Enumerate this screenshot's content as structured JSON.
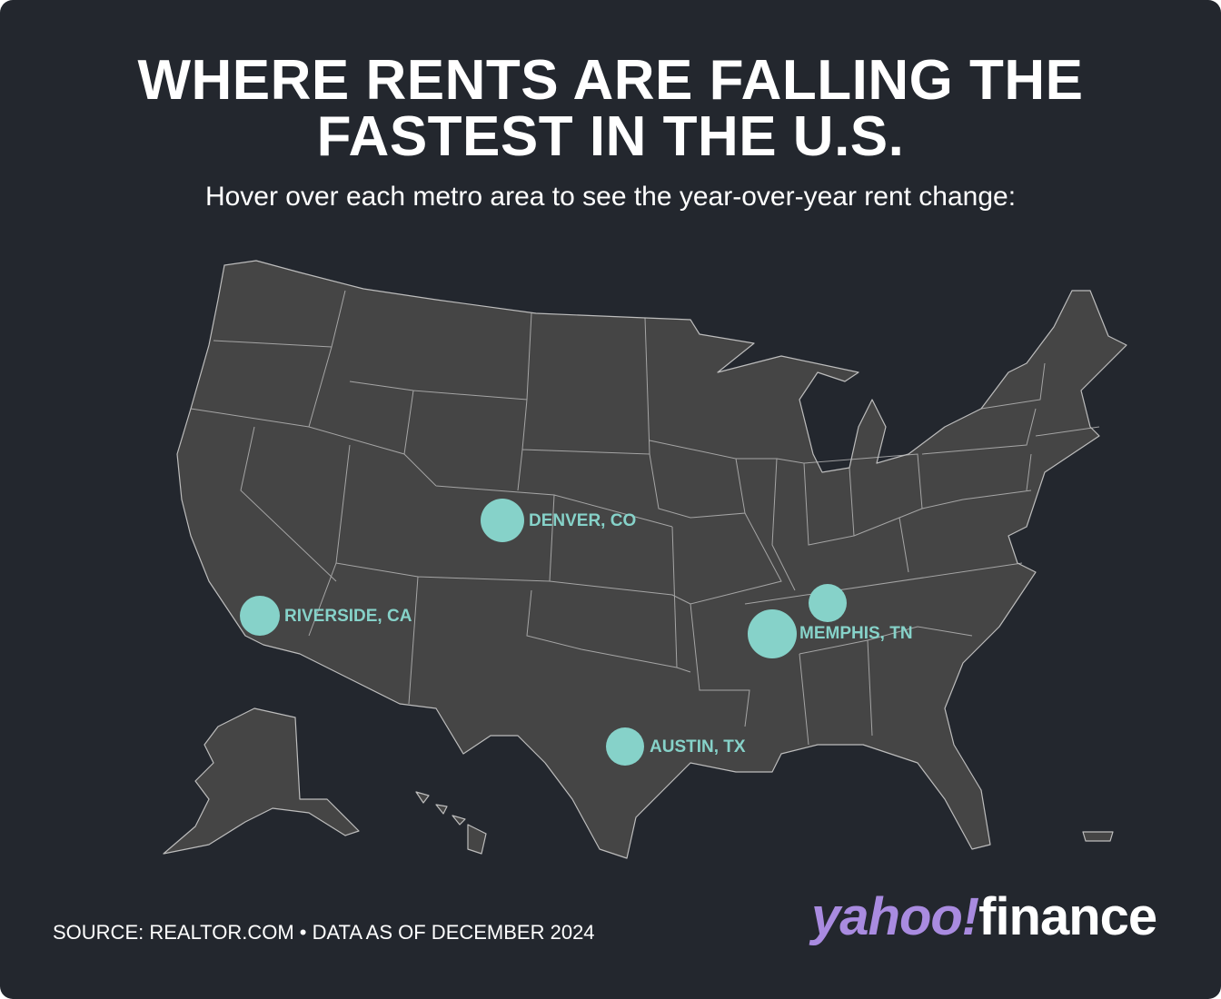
{
  "header": {
    "title": "WHERE RENTS ARE FALLING THE FASTEST IN THE U.S.",
    "subtitle": "Hover over each metro area to see the year-over-year rent change:"
  },
  "map": {
    "metros": [
      {
        "label": "DENVER, CO"
      },
      {
        "label": "RIVERSIDE, CA"
      },
      {
        "label": "MEMPHIS, TN"
      },
      {
        "label": "AUSTIN, TX"
      }
    ]
  },
  "footer": {
    "source": "SOURCE: REALTOR.COM • DATA AS OF DECEMBER 2024",
    "logo_brand": "yahoo!",
    "logo_product": "finance"
  }
}
